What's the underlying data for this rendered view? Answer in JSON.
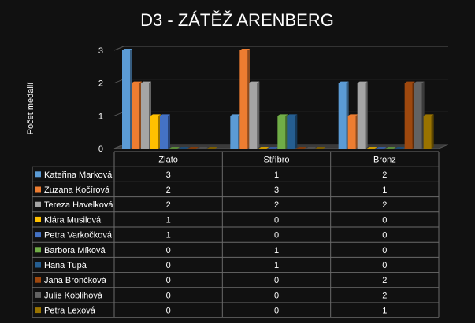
{
  "chart_data": {
    "type": "bar",
    "title": "D3 - ZÁTĚŽ ARENBERG",
    "ylabel": "Počet medailí",
    "xlabel": "",
    "categories": [
      "Zlato",
      "Stříbro",
      "Bronz"
    ],
    "ylim": [
      0,
      3
    ],
    "yticks": [
      "0",
      "1",
      "2",
      "3"
    ],
    "grid": true,
    "legend": "data-table",
    "series": [
      {
        "name": "Kateřina Marková",
        "values": [
          3,
          1,
          2
        ],
        "color": "#5b9bd5"
      },
      {
        "name": "Zuzana Kočírová",
        "values": [
          2,
          3,
          1
        ],
        "color": "#ed7d31"
      },
      {
        "name": "Tereza Havelková",
        "values": [
          2,
          2,
          2
        ],
        "color": "#a5a5a5"
      },
      {
        "name": "Klára Musilová",
        "values": [
          1,
          0,
          0
        ],
        "color": "#ffc000"
      },
      {
        "name": "Petra Varkočková",
        "values": [
          1,
          0,
          0
        ],
        "color": "#4472c4"
      },
      {
        "name": "Barbora Míková",
        "values": [
          0,
          1,
          0
        ],
        "color": "#70ad47"
      },
      {
        "name": "Hana Tupá",
        "values": [
          0,
          1,
          0
        ],
        "color": "#255e91"
      },
      {
        "name": "Jana Brončková",
        "values": [
          0,
          0,
          2
        ],
        "color": "#9e480e"
      },
      {
        "name": "Julie Koblihová",
        "values": [
          0,
          0,
          2
        ],
        "color": "#636363"
      },
      {
        "name": "Petra Lexová",
        "values": [
          0,
          0,
          1
        ],
        "color": "#997300"
      }
    ]
  }
}
